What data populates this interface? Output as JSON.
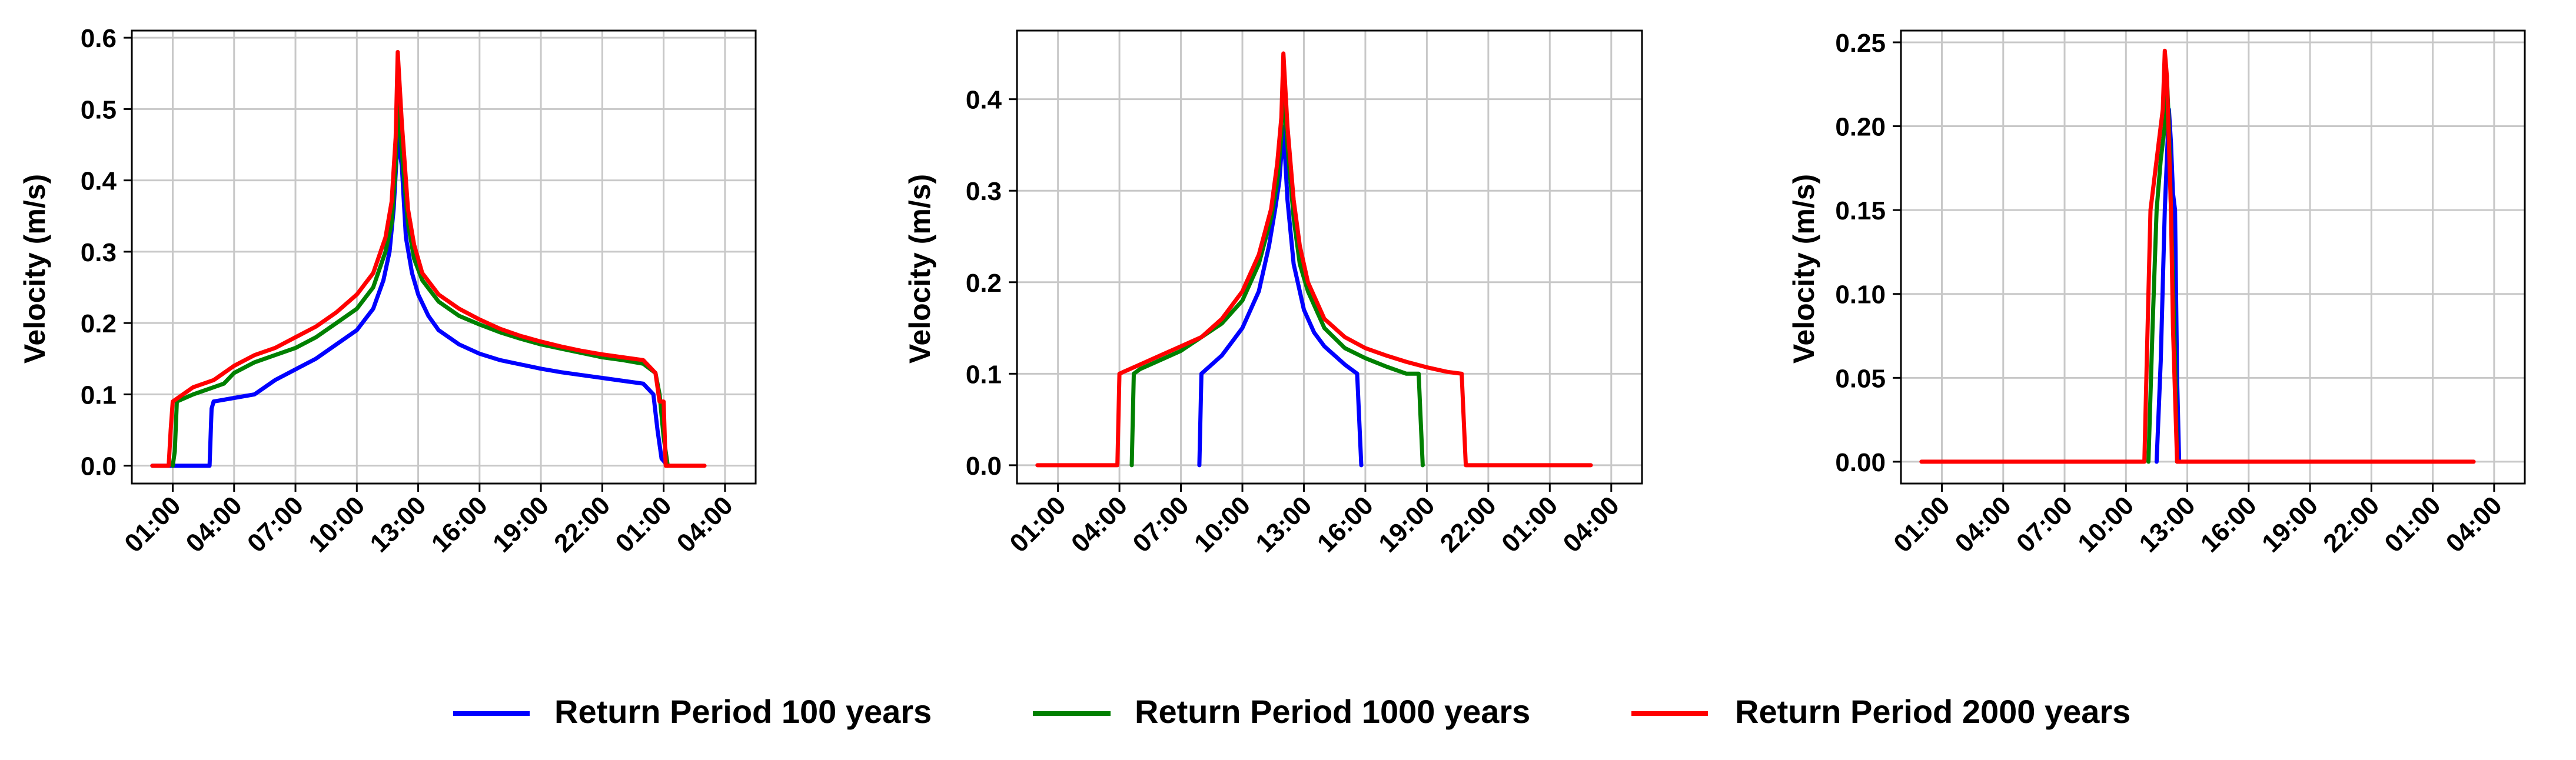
{
  "chart_data": [
    {
      "type": "line",
      "ylabel": "Velocity (m/s)",
      "xlim": [
        -1.0,
        29.5
      ],
      "ylim": [
        -0.025,
        0.61
      ],
      "x_ticks": [
        1,
        4,
        7,
        10,
        13,
        16,
        19,
        22,
        25,
        28
      ],
      "x_tick_labels": [
        "01:00",
        "04:00",
        "07:00",
        "10:00",
        "13:00",
        "16:00",
        "19:00",
        "22:00",
        "01:00",
        "04:00"
      ],
      "y_ticks": [
        0.0,
        0.1,
        0.2,
        0.3,
        0.4,
        0.5,
        0.6
      ],
      "y_tick_labels": [
        "0.0",
        "0.1",
        "0.2",
        "0.3",
        "0.4",
        "0.5",
        "0.6"
      ],
      "grid": true,
      "series": [
        {
          "name": "Return Period 100 years",
          "color": "#0000ff",
          "x": [
            0,
            2.8,
            2.9,
            3.0,
            4.0,
            5.0,
            6.0,
            7.0,
            8.0,
            9.0,
            10.0,
            10.8,
            11.3,
            11.6,
            11.8,
            12.0,
            12.2,
            12.4,
            12.7,
            13.0,
            13.5,
            14.0,
            15.0,
            16.0,
            17.0,
            18.0,
            19.0,
            20.0,
            21.0,
            22.0,
            23.0,
            24.0,
            24.5,
            24.7,
            24.9,
            25.2
          ],
          "y": [
            0,
            0,
            0.08,
            0.09,
            0.095,
            0.1,
            0.12,
            0.135,
            0.15,
            0.17,
            0.19,
            0.22,
            0.26,
            0.3,
            0.36,
            0.46,
            0.42,
            0.32,
            0.27,
            0.24,
            0.21,
            0.19,
            0.17,
            0.157,
            0.148,
            0.142,
            0.136,
            0.131,
            0.127,
            0.123,
            0.119,
            0.115,
            0.1,
            0.05,
            0.01,
            0
          ]
        },
        {
          "name": "Return Period 1000 years",
          "color": "#008000",
          "x": [
            1.0,
            1.1,
            1.2,
            2.0,
            3.0,
            3.5,
            4.0,
            5.0,
            6.0,
            7.0,
            8.0,
            9.0,
            10.0,
            10.8,
            11.4,
            11.7,
            11.9,
            12.0,
            12.2,
            12.5,
            12.8,
            13.2,
            14.0,
            15.0,
            16.0,
            17.0,
            18.0,
            19.0,
            20.0,
            21.0,
            22.0,
            23.0,
            24.0,
            24.6,
            24.8,
            25.0,
            25.2
          ],
          "y": [
            0,
            0.02,
            0.09,
            0.1,
            0.11,
            0.115,
            0.13,
            0.145,
            0.155,
            0.165,
            0.18,
            0.2,
            0.22,
            0.25,
            0.3,
            0.34,
            0.42,
            0.52,
            0.44,
            0.34,
            0.29,
            0.26,
            0.23,
            0.21,
            0.198,
            0.187,
            0.178,
            0.17,
            0.164,
            0.158,
            0.152,
            0.148,
            0.143,
            0.13,
            0.1,
            0.04,
            0
          ]
        },
        {
          "name": "Return Period 2000 years",
          "color": "#ff0000",
          "x": [
            0,
            0.8,
            0.9,
            1.0,
            2.0,
            3.0,
            4.0,
            5.0,
            6.0,
            7.0,
            8.0,
            9.0,
            10.0,
            10.8,
            11.4,
            11.7,
            11.9,
            12.0,
            12.2,
            12.5,
            12.8,
            13.2,
            14.0,
            15.0,
            16.0,
            17.0,
            18.0,
            19.0,
            20.0,
            21.0,
            22.0,
            23.0,
            24.0,
            24.6,
            24.8,
            25.0,
            25.1,
            27.0
          ],
          "y": [
            0,
            0,
            0.05,
            0.09,
            0.11,
            0.12,
            0.14,
            0.155,
            0.165,
            0.18,
            0.195,
            0.215,
            0.24,
            0.27,
            0.32,
            0.37,
            0.46,
            0.58,
            0.48,
            0.36,
            0.31,
            0.27,
            0.24,
            0.22,
            0.205,
            0.192,
            0.182,
            0.174,
            0.167,
            0.161,
            0.156,
            0.152,
            0.148,
            0.13,
            0.09,
            0.09,
            0,
            0
          ]
        }
      ]
    },
    {
      "type": "line",
      "ylabel": "Velocity (m/s)",
      "xlim": [
        -1.0,
        29.5
      ],
      "ylim": [
        -0.02,
        0.475
      ],
      "x_ticks": [
        1,
        4,
        7,
        10,
        13,
        16,
        19,
        22,
        25,
        28
      ],
      "x_tick_labels": [
        "01:00",
        "04:00",
        "07:00",
        "10:00",
        "13:00",
        "16:00",
        "19:00",
        "22:00",
        "01:00",
        "04:00"
      ],
      "y_ticks": [
        0.0,
        0.1,
        0.2,
        0.3,
        0.4
      ],
      "y_tick_labels": [
        "0.0",
        "0.1",
        "0.2",
        "0.3",
        "0.4"
      ],
      "grid": true,
      "series": [
        {
          "name": "Return Period 100 years",
          "color": "#0000ff",
          "x": [
            7.9,
            8.0,
            9.0,
            10.0,
            10.8,
            11.3,
            11.6,
            11.8,
            12.0,
            12.2,
            12.5,
            13.0,
            13.5,
            14.0,
            14.5,
            15.0,
            15.6,
            15.7,
            15.8
          ],
          "y": [
            0,
            0.1,
            0.12,
            0.15,
            0.19,
            0.24,
            0.28,
            0.31,
            0.37,
            0.29,
            0.22,
            0.17,
            0.145,
            0.13,
            0.12,
            0.11,
            0.1,
            0.05,
            0
          ]
        },
        {
          "name": "Return Period 1000 years",
          "color": "#008000",
          "x": [
            4.6,
            4.7,
            5.0,
            6.0,
            7.0,
            8.0,
            9.0,
            10.0,
            10.8,
            11.4,
            11.7,
            11.9,
            12.0,
            12.2,
            12.5,
            12.8,
            13.2,
            14.0,
            15.0,
            16.0,
            17.0,
            18.0,
            18.6,
            18.7,
            18.8
          ],
          "y": [
            0,
            0.1,
            0.105,
            0.115,
            0.125,
            0.14,
            0.155,
            0.18,
            0.22,
            0.27,
            0.31,
            0.36,
            0.42,
            0.35,
            0.27,
            0.22,
            0.19,
            0.15,
            0.128,
            0.117,
            0.108,
            0.1,
            0.1,
            0.05,
            0
          ]
        },
        {
          "name": "Return Period 2000 years",
          "color": "#ff0000",
          "x": [
            0,
            3.9,
            4.0,
            5.0,
            6.0,
            7.0,
            8.0,
            9.0,
            10.0,
            10.8,
            11.4,
            11.7,
            11.9,
            12.0,
            12.2,
            12.5,
            12.8,
            13.2,
            14.0,
            15.0,
            16.0,
            17.0,
            18.0,
            19.0,
            20.0,
            20.7,
            20.8,
            20.9,
            27.0
          ],
          "y": [
            0,
            0,
            0.1,
            0.11,
            0.12,
            0.13,
            0.14,
            0.16,
            0.19,
            0.23,
            0.28,
            0.33,
            0.38,
            0.45,
            0.37,
            0.29,
            0.24,
            0.2,
            0.16,
            0.14,
            0.128,
            0.12,
            0.113,
            0.107,
            0.102,
            0.1,
            0.05,
            0,
            0
          ]
        }
      ]
    },
    {
      "type": "line",
      "ylabel": "Velocity (m/s)",
      "xlim": [
        -1.0,
        29.5
      ],
      "ylim": [
        -0.013,
        0.257
      ],
      "x_ticks": [
        1,
        4,
        7,
        10,
        13,
        16,
        19,
        22,
        25,
        28
      ],
      "x_tick_labels": [
        "01:00",
        "04:00",
        "07:00",
        "10:00",
        "13:00",
        "16:00",
        "19:00",
        "22:00",
        "01:00",
        "04:00"
      ],
      "y_ticks": [
        0.0,
        0.05,
        0.1,
        0.15,
        0.2,
        0.25
      ],
      "y_tick_labels": [
        "0.00",
        "0.05",
        "0.10",
        "0.15",
        "0.20",
        "0.25"
      ],
      "grid": true,
      "series": [
        {
          "name": "Return Period 100 years",
          "color": "#0000ff",
          "x": [
            11.5,
            11.7,
            11.9,
            12.0,
            12.1,
            12.2,
            12.3,
            12.4,
            12.5,
            12.6
          ],
          "y": [
            0,
            0.06,
            0.15,
            0.18,
            0.21,
            0.19,
            0.16,
            0.15,
            0.05,
            0
          ]
        },
        {
          "name": "Return Period 1000 years",
          "color": "#008000",
          "x": [
            11.1,
            11.3,
            11.5,
            11.7,
            11.9,
            12.0,
            12.1,
            12.2,
            12.4,
            12.5
          ],
          "y": [
            0,
            0.08,
            0.15,
            0.18,
            0.2,
            0.23,
            0.2,
            0.15,
            0.06,
            0
          ]
        },
        {
          "name": "Return Period 2000 years",
          "color": "#ff0000",
          "x": [
            0,
            10.9,
            11.0,
            11.2,
            11.4,
            11.6,
            11.8,
            11.9,
            12.0,
            12.1,
            12.2,
            12.3,
            12.5,
            27.0
          ],
          "y": [
            0,
            0,
            0.05,
            0.15,
            0.17,
            0.19,
            0.21,
            0.245,
            0.23,
            0.19,
            0.15,
            0.08,
            0,
            0
          ]
        }
      ]
    }
  ],
  "legend": {
    "items": [
      {
        "label": "Return Period 100 years",
        "color": "#0000ff"
      },
      {
        "label": "Return Period 1000 years",
        "color": "#008000"
      },
      {
        "label": "Return Period 2000 years",
        "color": "#ff0000"
      }
    ]
  }
}
